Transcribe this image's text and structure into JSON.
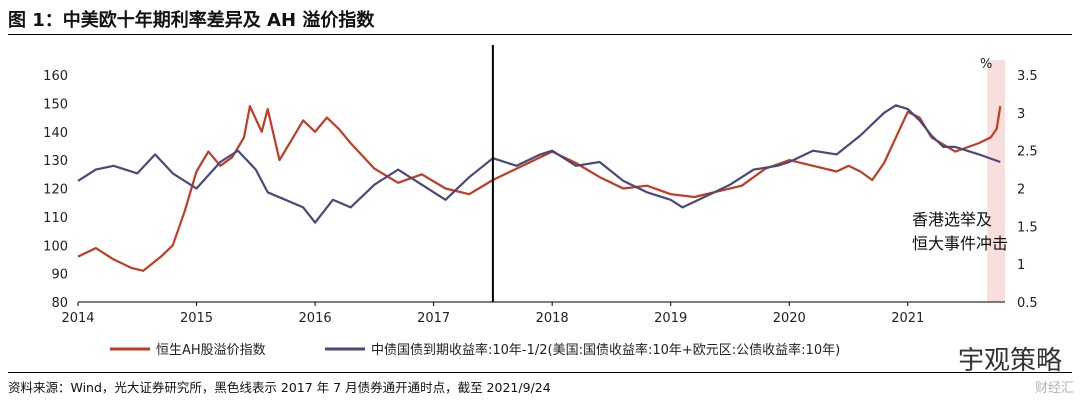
{
  "title": "图 1：中美欧十年期利率差异及 AH 溢价指数",
  "source": "资料来源：Wind，光大证券研究所，黑色线表示 2017 年 7 月债券通开通时点，截至 2021/9/24",
  "watermark": "财经汇",
  "logo_text": "宇观策略",
  "colors": {
    "red": "#c23b22",
    "navy": "#4a4a7a",
    "shade": "#f9dede",
    "vline": "#000000"
  },
  "chart_data": {
    "type": "line",
    "title": "",
    "xlabel": "",
    "ylabel_left": "",
    "ylabel_right": "%",
    "x_ticks": [
      "2014",
      "2015",
      "2016",
      "2017",
      "2018",
      "2019",
      "2020",
      "2021"
    ],
    "xlim": [
      2014.0,
      2021.82
    ],
    "ylim_left": [
      80,
      160
    ],
    "yticks_left": [
      80,
      90,
      100,
      110,
      120,
      130,
      140,
      150,
      160
    ],
    "ylim_right": [
      0.5,
      3.5
    ],
    "yticks_right": [
      0.5,
      1,
      1.5,
      2,
      2.5,
      3,
      3.5
    ],
    "yticks_right_labels": [
      "0.5",
      "1",
      "1.5",
      "2",
      "2.5",
      "3",
      "3.5"
    ],
    "vertical_line_x": 2017.5,
    "shaded_region": [
      2021.67,
      2021.82
    ],
    "annotation": [
      "香港选举及",
      "恒大事件冲击"
    ],
    "series": [
      {
        "name": "恒生AH股溢价指数",
        "axis": "left",
        "x": [
          2014.0,
          2014.15,
          2014.3,
          2014.45,
          2014.55,
          2014.7,
          2014.8,
          2014.9,
          2015.0,
          2015.1,
          2015.2,
          2015.3,
          2015.4,
          2015.45,
          2015.55,
          2015.6,
          2015.7,
          2015.8,
          2015.9,
          2016.0,
          2016.1,
          2016.2,
          2016.3,
          2016.5,
          2016.7,
          2016.9,
          2017.1,
          2017.3,
          2017.5,
          2017.7,
          2017.9,
          2018.0,
          2018.2,
          2018.4,
          2018.6,
          2018.8,
          2019.0,
          2019.2,
          2019.4,
          2019.6,
          2019.8,
          2020.0,
          2020.2,
          2020.4,
          2020.5,
          2020.6,
          2020.7,
          2020.8,
          2020.9,
          2021.0,
          2021.1,
          2021.2,
          2021.4,
          2021.6,
          2021.7,
          2021.75,
          2021.78
        ],
        "values": [
          96,
          99,
          95,
          92,
          91,
          96,
          100,
          112,
          126,
          133,
          128,
          131,
          138,
          149,
          140,
          148,
          130,
          137,
          144,
          140,
          145,
          141,
          136,
          127,
          122,
          125,
          120,
          118,
          123,
          127,
          131,
          133,
          129,
          124,
          120,
          121,
          118,
          117,
          119,
          121,
          127,
          130,
          128,
          126,
          128,
          126,
          123,
          129,
          138,
          147,
          145,
          138,
          133,
          136,
          138,
          141,
          149
        ]
      },
      {
        "name": "中债国债到期收益率:10年-1/2(美国:国债收益率:10年+欧元区:公债收益率:10年)",
        "axis": "right",
        "x": [
          2014.0,
          2014.15,
          2014.3,
          2014.5,
          2014.65,
          2014.8,
          2015.0,
          2015.2,
          2015.35,
          2015.5,
          2015.6,
          2015.75,
          2015.9,
          2016.0,
          2016.15,
          2016.3,
          2016.5,
          2016.7,
          2016.9,
          2017.1,
          2017.3,
          2017.5,
          2017.7,
          2017.9,
          2018.0,
          2018.2,
          2018.4,
          2018.6,
          2018.8,
          2019.0,
          2019.1,
          2019.3,
          2019.5,
          2019.7,
          2019.9,
          2020.0,
          2020.2,
          2020.4,
          2020.6,
          2020.7,
          2020.8,
          2020.9,
          2021.0,
          2021.1,
          2021.2,
          2021.3,
          2021.4,
          2021.6,
          2021.78
        ],
        "values": [
          2.1,
          2.25,
          2.3,
          2.2,
          2.45,
          2.2,
          2.0,
          2.35,
          2.5,
          2.25,
          1.95,
          1.85,
          1.75,
          1.55,
          1.85,
          1.75,
          2.05,
          2.25,
          2.05,
          1.85,
          2.15,
          2.4,
          2.3,
          2.45,
          2.5,
          2.3,
          2.35,
          2.1,
          1.95,
          1.85,
          1.75,
          1.9,
          2.05,
          2.25,
          2.3,
          2.35,
          2.5,
          2.45,
          2.7,
          2.85,
          3.0,
          3.1,
          3.05,
          2.9,
          2.7,
          2.55,
          2.55,
          2.45,
          2.35
        ]
      }
    ]
  }
}
